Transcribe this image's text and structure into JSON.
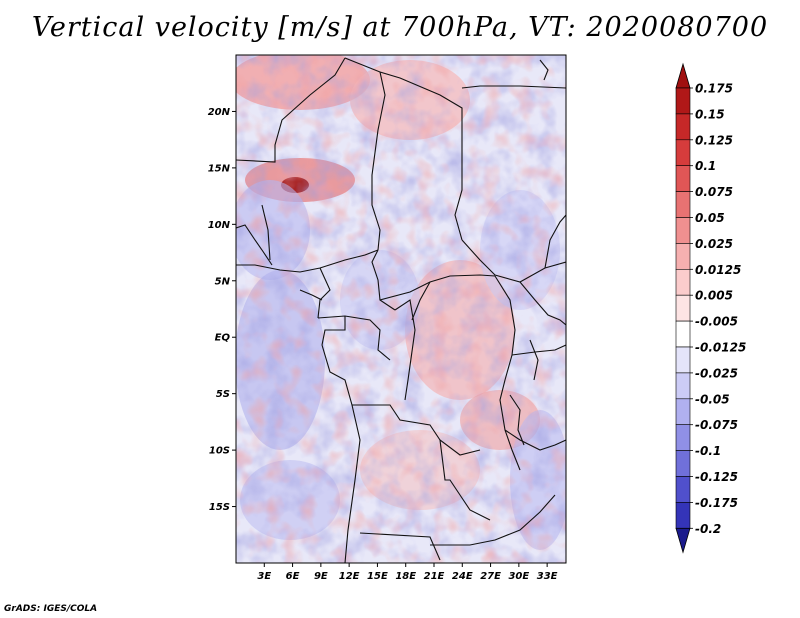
{
  "title": "Vertical velocity [m/s] at 700hPa, VT: 2020080700",
  "credit": "GrADS: IGES/COLA",
  "map": {
    "lon_range": [
      0,
      35
    ],
    "lat_range": [
      -20,
      25
    ],
    "lat_ticks": [
      {
        "value": 20,
        "label": "20N"
      },
      {
        "value": 15,
        "label": "15N"
      },
      {
        "value": 10,
        "label": "10N"
      },
      {
        "value": 5,
        "label": "5N"
      },
      {
        "value": 0,
        "label": "EQ"
      },
      {
        "value": -5,
        "label": "5S"
      },
      {
        "value": -10,
        "label": "10S"
      },
      {
        "value": -15,
        "label": "15S"
      }
    ],
    "lon_ticks": [
      {
        "value": 3,
        "label": "3E"
      },
      {
        "value": 6,
        "label": "6E"
      },
      {
        "value": 9,
        "label": "9E"
      },
      {
        "value": 12,
        "label": "12E"
      },
      {
        "value": 15,
        "label": "15E"
      },
      {
        "value": 18,
        "label": "18E"
      },
      {
        "value": 21,
        "label": "21E"
      },
      {
        "value": 24,
        "label": "24E"
      },
      {
        "value": 27,
        "label": "27E"
      },
      {
        "value": 30,
        "label": "30E"
      },
      {
        "value": 33,
        "label": "33E"
      }
    ]
  },
  "colorbar": {
    "levels": [
      {
        "label": "0.175",
        "color": "#b01818"
      },
      {
        "label": "0.15",
        "color": "#c62828"
      },
      {
        "label": "0.125",
        "color": "#d63c3c"
      },
      {
        "label": "0.1",
        "color": "#e05656"
      },
      {
        "label": "0.075",
        "color": "#e87272"
      },
      {
        "label": "0.05",
        "color": "#f09090"
      },
      {
        "label": "0.025",
        "color": "#f6b0b0"
      },
      {
        "label": "0.0125",
        "color": "#fbcccc"
      },
      {
        "label": "0.005",
        "color": "#fde4e4"
      },
      {
        "label": "-0.005",
        "color": "#ffffff"
      },
      {
        "label": "-0.0125",
        "color": "#e4e4fa"
      },
      {
        "label": "-0.025",
        "color": "#ccccf6"
      },
      {
        "label": "-0.05",
        "color": "#b0b0f0"
      },
      {
        "label": "-0.075",
        "color": "#9090e6"
      },
      {
        "label": "-0.1",
        "color": "#7070da"
      },
      {
        "label": "-0.125",
        "color": "#5050cc"
      },
      {
        "label": "-0.175",
        "color": "#3434b8"
      },
      {
        "label": "-0.2",
        "color": "#2020a0"
      }
    ],
    "top_color": "#a01010",
    "bottom_color": "#1a1a8c"
  }
}
